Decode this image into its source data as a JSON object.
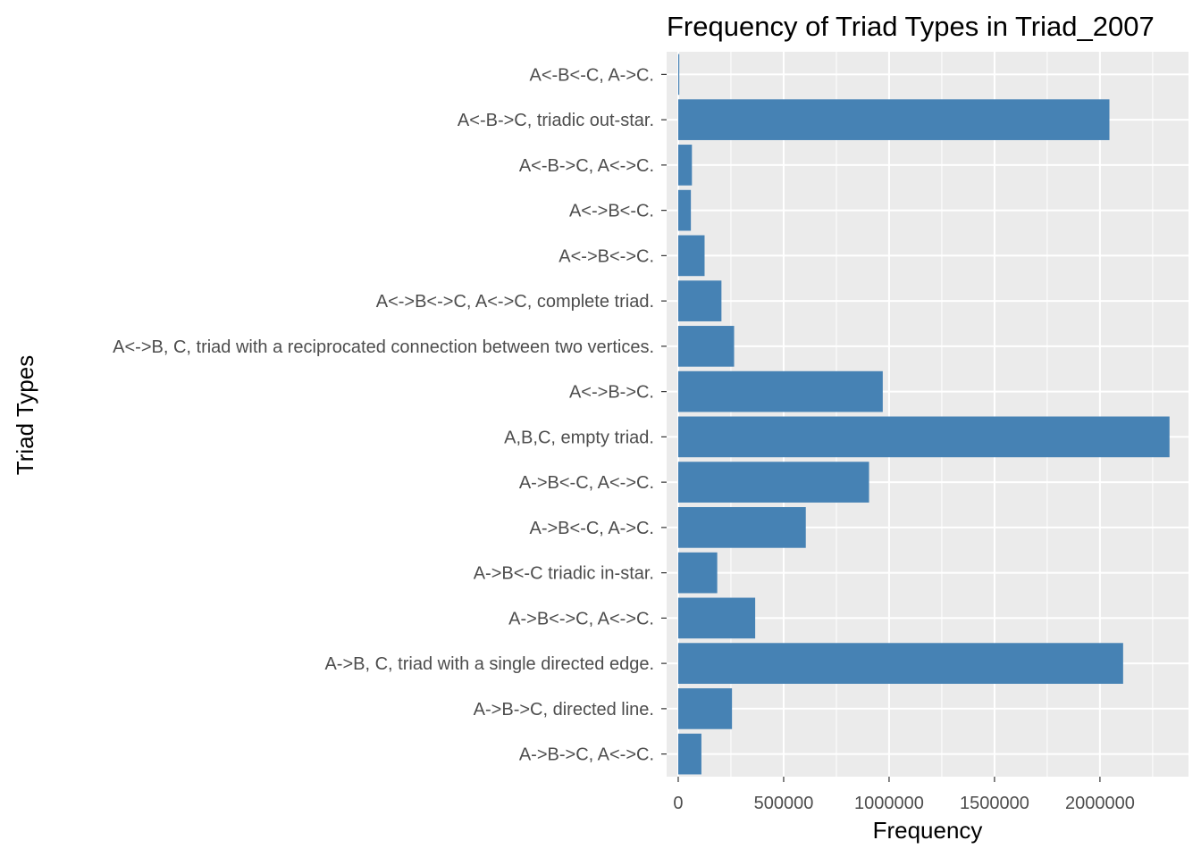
{
  "chart_data": {
    "type": "bar",
    "orientation": "horizontal",
    "title": "Frequency of Triad Types in Triad_2007",
    "xlabel": "Frequency",
    "ylabel": "Triad Types",
    "xlim": [
      -55000,
      2420000
    ],
    "xticks": [
      0,
      500000,
      1000000,
      1500000,
      2000000
    ],
    "grid": true,
    "bar_color": "#4682b4",
    "panel_color": "#ebebeb",
    "categories": [
      "A<-B<-C, A->C.",
      "A<-B->C, triadic out-star.",
      "A<-B->C, A<->C.",
      "A<->B<-C.",
      "A<->B<->C.",
      "A<->B<->C, A<->C,  complete triad.",
      "A<->B, C, triad with a reciprocated connection between two vertices.",
      "A<->B->C.",
      "A,B,C, empty triad.",
      "A->B<-C, A<->C.",
      "A->B<-C, A->C.",
      "A->B<-C triadic in-star.",
      "A->B<->C, A<->C.",
      "A->B, C, triad with a single directed edge.",
      "A->B->C, directed line.",
      "A->B->C, A<->C."
    ],
    "values": [
      5000,
      2045000,
      65000,
      60000,
      125000,
      205000,
      265000,
      970000,
      2330000,
      905000,
      605000,
      185000,
      365000,
      2110000,
      255000,
      110000
    ]
  }
}
